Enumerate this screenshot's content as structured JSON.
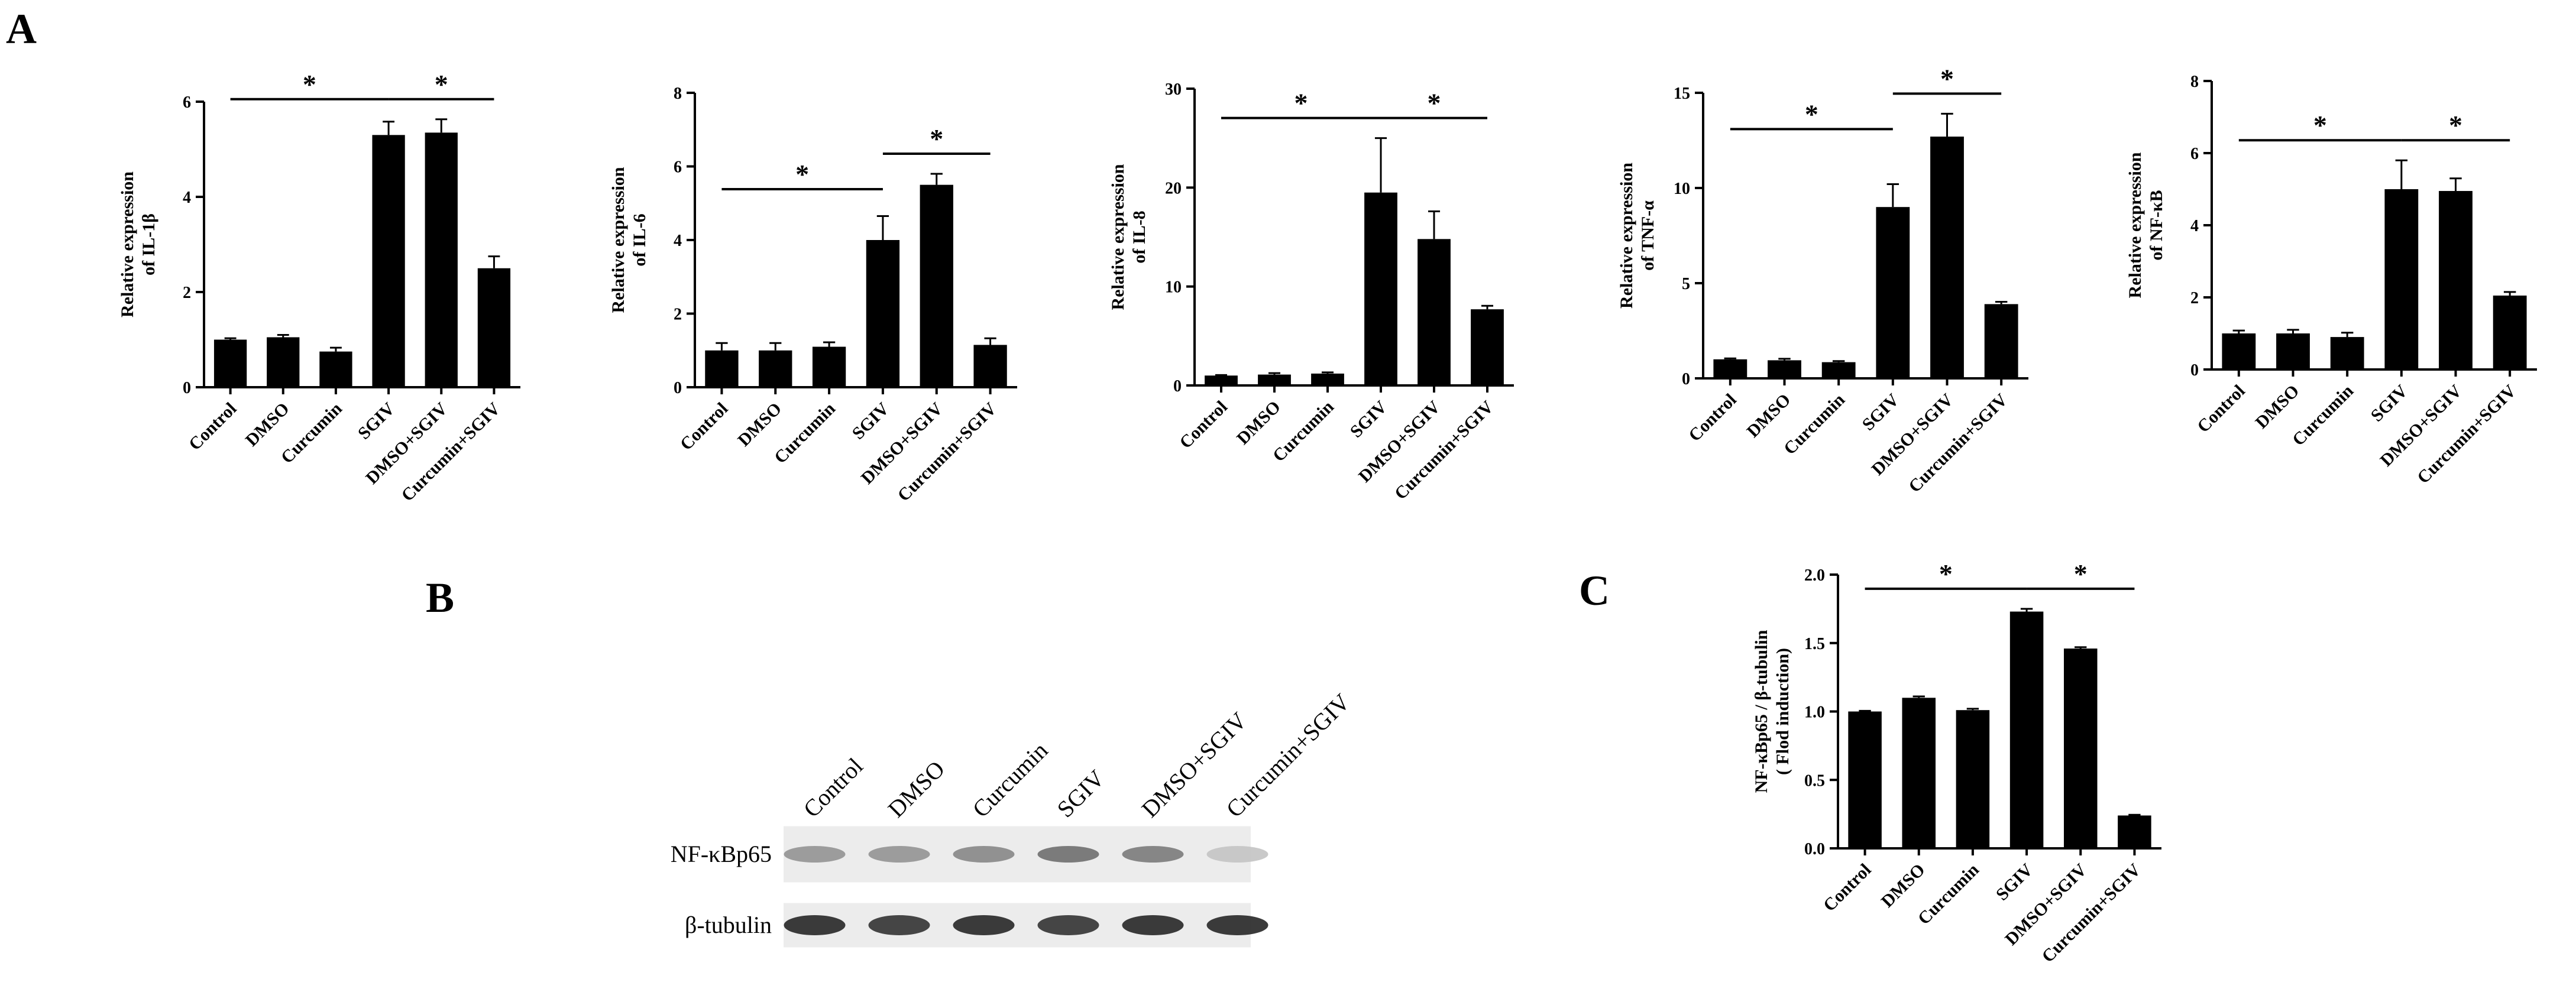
{
  "panels": {
    "A": "A",
    "B": "B",
    "C": "C"
  },
  "categories": [
    "Control",
    "DMSO",
    "Curcumin",
    "SGIV",
    "DMSO+SGIV",
    "Curcumin+SGIV"
  ],
  "significance_mark": "*",
  "chart_data": [
    {
      "type": "bar",
      "panel": "A",
      "ylabel": "Relative expression of IL-1β",
      "ylabel_lines": [
        "Relative expression",
        "of IL-1β"
      ],
      "categories": [
        "Control",
        "DMSO",
        "Curcumin",
        "SGIV",
        "DMSO+SGIV",
        "Curcumin+SGIV"
      ],
      "values": [
        1.0,
        1.05,
        0.75,
        5.3,
        5.35,
        2.5
      ],
      "errors": [
        0.03,
        0.05,
        0.08,
        0.28,
        0.28,
        0.25
      ],
      "ylim": [
        0,
        6
      ],
      "yticks": [
        0,
        2,
        4,
        6
      ],
      "significance": [
        {
          "from": 0,
          "to": 3,
          "label": "*"
        },
        {
          "from": 3,
          "to": 5,
          "label": "*"
        }
      ]
    },
    {
      "type": "bar",
      "panel": "A",
      "ylabel": "Relative expression of IL-6",
      "ylabel_lines": [
        "Relative expression",
        "of IL-6"
      ],
      "categories": [
        "Control",
        "DMSO",
        "Curcumin",
        "SGIV",
        "DMSO+SGIV",
        "Curcumin+SGIV"
      ],
      "values": [
        1.0,
        1.0,
        1.1,
        4.0,
        5.5,
        1.15
      ],
      "errors": [
        0.2,
        0.2,
        0.12,
        0.65,
        0.3,
        0.18
      ],
      "ylim": [
        0,
        8
      ],
      "yticks": [
        0,
        2,
        4,
        6,
        8
      ],
      "significance": [
        {
          "from": 0,
          "to": 3,
          "label": "*"
        },
        {
          "from": 3,
          "to": 5,
          "label": "*"
        }
      ]
    },
    {
      "type": "bar",
      "panel": "A",
      "ylabel": "Relative expression of IL-8",
      "ylabel_lines": [
        "Relative expression",
        "of IL-8"
      ],
      "categories": [
        "Control",
        "DMSO",
        "Curcumin",
        "SGIV",
        "DMSO+SGIV",
        "Curcumin+SGIV"
      ],
      "values": [
        1.0,
        1.1,
        1.2,
        19.5,
        14.8,
        7.7
      ],
      "errors": [
        0.05,
        0.15,
        0.12,
        5.5,
        2.8,
        0.35
      ],
      "ylim": [
        0,
        30
      ],
      "yticks": [
        0,
        10,
        20,
        30
      ],
      "significance": [
        {
          "from": 0,
          "to": 3,
          "label": "*"
        },
        {
          "from": 3,
          "to": 5,
          "label": "*"
        }
      ]
    },
    {
      "type": "bar",
      "panel": "A",
      "ylabel": "Relative expression of TNF-α",
      "ylabel_lines": [
        "Relative expression",
        "of TNF-α"
      ],
      "categories": [
        "Control",
        "DMSO",
        "Curcumin",
        "SGIV",
        "DMSO+SGIV",
        "Curcumin+SGIV"
      ],
      "values": [
        1.0,
        0.95,
        0.85,
        9.0,
        12.7,
        3.9
      ],
      "errors": [
        0.05,
        0.08,
        0.06,
        1.2,
        1.2,
        0.12
      ],
      "ylim": [
        0,
        15
      ],
      "yticks": [
        0,
        5,
        10,
        15
      ],
      "significance": [
        {
          "from": 0,
          "to": 3,
          "label": "*"
        },
        {
          "from": 3,
          "to": 5,
          "label": "*"
        }
      ]
    },
    {
      "type": "bar",
      "panel": "A",
      "ylabel": "Relative expression of NF-κB",
      "ylabel_lines": [
        "Relative expression",
        "of NF-κB"
      ],
      "categories": [
        "Control",
        "DMSO",
        "Curcumin",
        "SGIV",
        "DMSO+SGIV",
        "Curcumin+SGIV"
      ],
      "values": [
        1.0,
        1.0,
        0.9,
        5.0,
        4.95,
        2.05
      ],
      "errors": [
        0.08,
        0.1,
        0.12,
        0.8,
        0.35,
        0.1
      ],
      "ylim": [
        0,
        8
      ],
      "yticks": [
        0,
        2,
        4,
        6,
        8
      ],
      "significance": [
        {
          "from": 0,
          "to": 3,
          "label": "*"
        },
        {
          "from": 3,
          "to": 5,
          "label": "*"
        }
      ]
    },
    {
      "type": "bar",
      "panel": "C",
      "ylabel": "NF-κBp65 / β-tubulin ( Flod induction)",
      "ylabel_lines": [
        "NF-κBp65 / β-tubulin",
        "( Flod induction)"
      ],
      "categories": [
        "Control",
        "DMSO",
        "Curcumin",
        "SGIV",
        "DMSO+SGIV",
        "Curcumin+SGIV"
      ],
      "values": [
        1.0,
        1.1,
        1.01,
        1.73,
        1.46,
        0.24
      ],
      "errors": [
        0.005,
        0.01,
        0.01,
        0.02,
        0.01,
        0.005
      ],
      "ylim": [
        0,
        2.0
      ],
      "yticks": [
        0.0,
        0.5,
        1.0,
        1.5,
        2.0
      ],
      "tick_format": 1,
      "significance": [
        {
          "from": 0,
          "to": 3,
          "label": "*"
        },
        {
          "from": 3,
          "to": 5,
          "label": "*"
        }
      ]
    }
  ],
  "blot": {
    "lanes": [
      "Control",
      "DMSO",
      "Curcumin",
      "SGIV",
      "DMSO+SGIV",
      "Curcumin+SGIV"
    ],
    "rows": [
      {
        "label": "NF-κBp65",
        "intensity": [
          0.45,
          0.45,
          0.5,
          0.6,
          0.55,
          0.25
        ]
      },
      {
        "label": "β-tubulin",
        "intensity": [
          0.9,
          0.85,
          0.9,
          0.85,
          0.9,
          0.9
        ]
      }
    ]
  }
}
